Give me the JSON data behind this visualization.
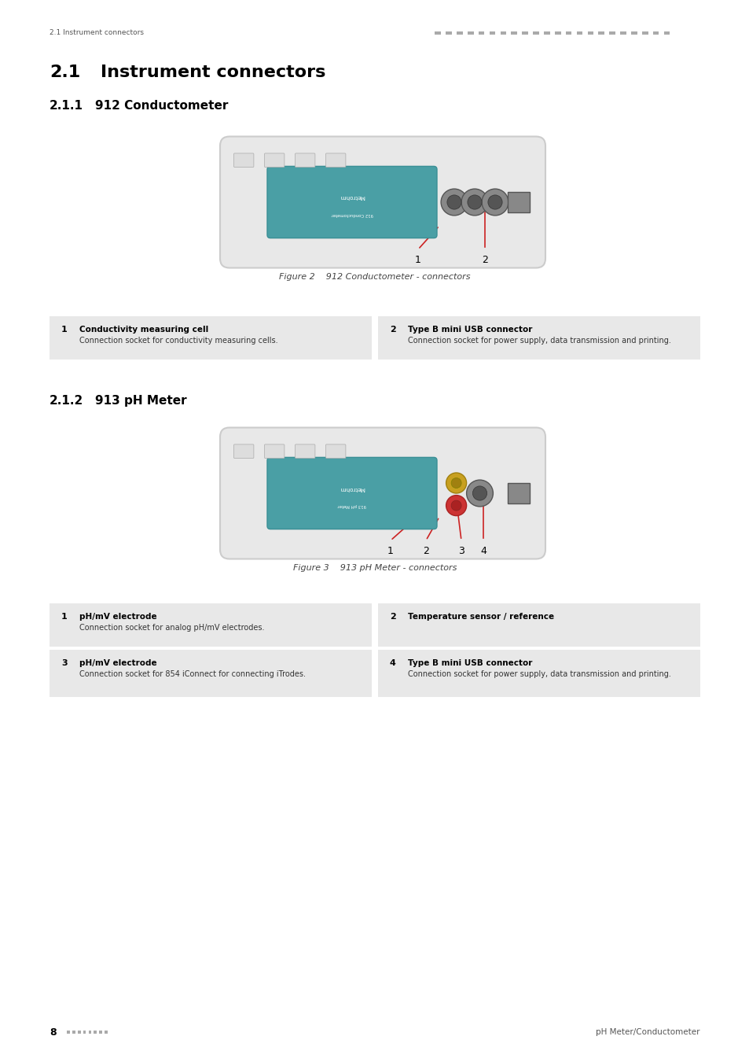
{
  "page_width": 9.54,
  "page_height": 13.5,
  "bg_color": "#ffffff",
  "header_text_left": "2.1 Instrument connectors",
  "header_dots_color": "#aaaaaa",
  "section_title": "2.1   Instrument connectors",
  "section_num": "2.1",
  "section_label": "Instrument connectors",
  "subsection1_num": "2.1.1",
  "subsection1_label": "912 Conductometer",
  "subsection2_num": "2.1.2",
  "subsection2_label": "913 pH Meter",
  "fig2_caption": "Figure 2    912 Conductometer - connectors",
  "fig3_caption": "Figure 3    913 pH Meter - connectors",
  "table1_items": [
    {
      "num": "1",
      "bold": "Conductivity measuring cell",
      "text": "Connection socket for conductivity measuring cells."
    },
    {
      "num": "2",
      "bold": "Type B mini USB connector",
      "text": "Connection socket for power supply, data transmission and printing."
    }
  ],
  "table2_items": [
    {
      "num": "1",
      "bold": "pH/mV electrode",
      "text": "Connection socket for analog pH/mV electrodes."
    },
    {
      "num": "2",
      "bold": "Temperature sensor / reference",
      "text": ""
    },
    {
      "num": "3",
      "bold": "pH/mV electrode",
      "text": "Connection socket for 854 iConnect for connecting iTrodes."
    },
    {
      "num": "4",
      "bold": "Type B mini USB connector",
      "text": "Connection socket for power supply, data transmission and printing."
    }
  ],
  "footer_page": "8",
  "footer_dots_color": "#aaaaaa",
  "footer_right": "pH Meter/Conductometer",
  "table_bg": "#e8e8e8",
  "table_bg2": "#f2f2f2",
  "accent_color": "#4a9fa5",
  "text_color": "#000000",
  "gray_text": "#555555",
  "header_color": "#333333"
}
